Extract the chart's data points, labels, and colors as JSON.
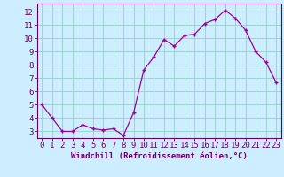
{
  "x": [
    0,
    1,
    2,
    3,
    4,
    5,
    6,
    7,
    8,
    9,
    10,
    11,
    12,
    13,
    14,
    15,
    16,
    17,
    18,
    19,
    20,
    21,
    22,
    23
  ],
  "y": [
    5.0,
    4.0,
    3.0,
    3.0,
    3.5,
    3.2,
    3.1,
    3.2,
    2.7,
    4.4,
    7.6,
    8.6,
    9.9,
    9.4,
    10.2,
    10.3,
    11.1,
    11.4,
    12.1,
    11.5,
    10.6,
    9.0,
    8.2,
    6.7
  ],
  "line_color": "#990099",
  "marker": "+",
  "marker_size": 3.5,
  "marker_lw": 1.0,
  "bg_color": "#cceeff",
  "grid_color": "#99cccc",
  "xlabel": "Windchill (Refroidissement éolien,°C)",
  "xlabel_fontsize": 6.5,
  "ylabel_ticks": [
    3,
    4,
    5,
    6,
    7,
    8,
    9,
    10,
    11,
    12
  ],
  "xlim": [
    -0.5,
    23.5
  ],
  "ylim": [
    2.5,
    12.6
  ],
  "tick_fontsize": 6.5,
  "spine_color": "#660066",
  "line_width": 0.9
}
